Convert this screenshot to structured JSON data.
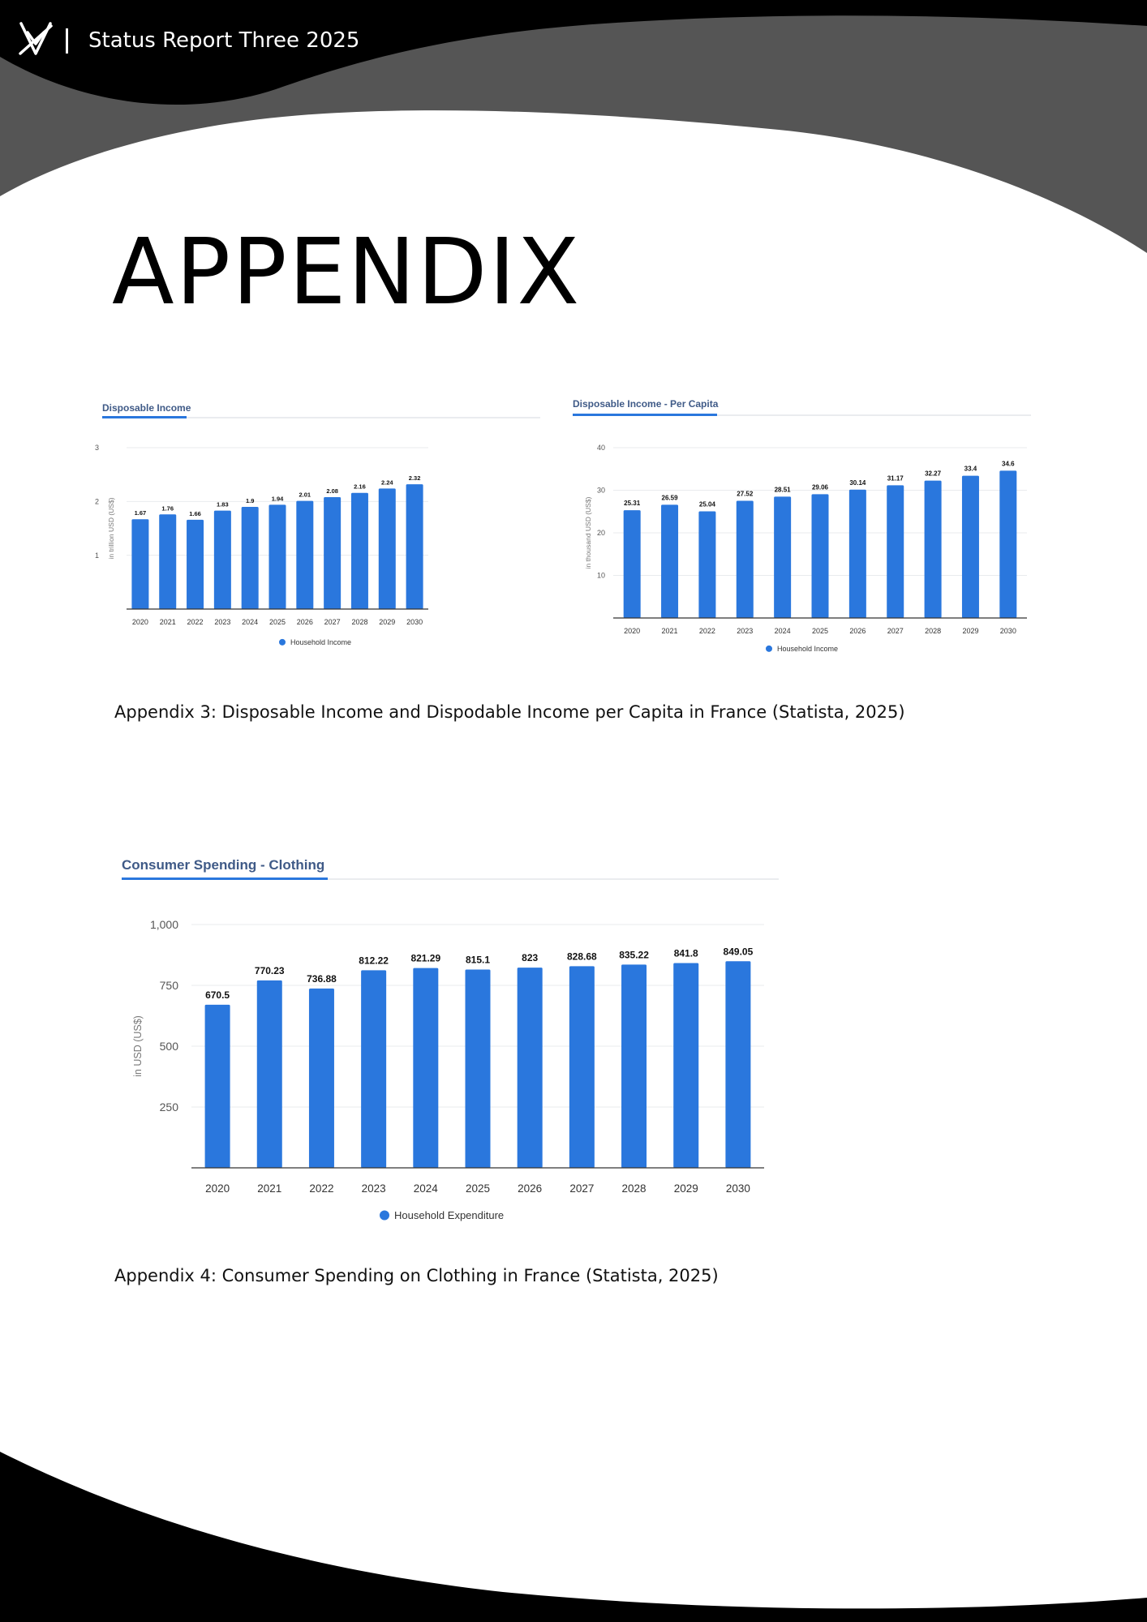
{
  "header": {
    "title": "Status Report Three 2025",
    "logo_icon": "antler-mark-icon"
  },
  "page": {
    "title": "APPENDIX"
  },
  "captions": {
    "appendix3": "Appendix 3: Disposable Income and Dispodable Income per Capita in France (Statista, 2025)",
    "appendix4": "Appendix 4: Consumer Spending on Clothing in France (Statista, 2025)"
  },
  "colors": {
    "bar": "#2a77dd",
    "tab_title": "#3f5a87",
    "tab_underline": "#2a77dd",
    "header_band": "#000000",
    "header_wave": "#555555"
  },
  "chart_data": [
    {
      "type": "bar",
      "title": "Disposable Income",
      "ylabel": "in trillion USD (US$)",
      "xlabel": "",
      "categories": [
        "2020",
        "2021",
        "2022",
        "2023",
        "2024",
        "2025",
        "2026",
        "2027",
        "2028",
        "2029",
        "2030"
      ],
      "series": [
        {
          "name": "Household Income",
          "values": [
            1.67,
            1.76,
            1.66,
            1.83,
            1.9,
            1.94,
            2.01,
            2.08,
            2.16,
            2.24,
            2.32
          ]
        }
      ],
      "value_labels": [
        "1.67",
        "1.76",
        "1.66",
        "1.83",
        "1.9",
        "1.94",
        "2.01",
        "2.08",
        "2.16",
        "2.24",
        "2.32"
      ],
      "ylim": [
        0,
        3
      ],
      "yticks": [
        1,
        2,
        3
      ],
      "ytick_labels": [
        "1",
        "2",
        "3"
      ],
      "grid": true,
      "legend": "bottom"
    },
    {
      "type": "bar",
      "title": "Disposable Income - Per Capita",
      "ylabel": "in thousand USD (US$)",
      "xlabel": "",
      "categories": [
        "2020",
        "2021",
        "2022",
        "2023",
        "2024",
        "2025",
        "2026",
        "2027",
        "2028",
        "2029",
        "2030"
      ],
      "series": [
        {
          "name": "Household Income",
          "values": [
            25.31,
            26.59,
            25.04,
            27.52,
            28.51,
            29.06,
            30.14,
            31.17,
            32.27,
            33.4,
            34.6
          ]
        }
      ],
      "value_labels": [
        "25.31",
        "26.59",
        "25.04",
        "27.52",
        "28.51",
        "29.06",
        "30.14",
        "31.17",
        "32.27",
        "33.4",
        "34.6"
      ],
      "ylim": [
        0,
        40
      ],
      "yticks": [
        10,
        20,
        30,
        40
      ],
      "ytick_labels": [
        "10",
        "20",
        "30",
        "40"
      ],
      "grid": true,
      "legend": "bottom"
    },
    {
      "type": "bar",
      "title": "Consumer Spending - Clothing",
      "ylabel": "in USD (US$)",
      "xlabel": "",
      "categories": [
        "2020",
        "2021",
        "2022",
        "2023",
        "2024",
        "2025",
        "2026",
        "2027",
        "2028",
        "2029",
        "2030"
      ],
      "series": [
        {
          "name": "Household Expenditure",
          "values": [
            670.5,
            770.23,
            736.88,
            812.22,
            821.29,
            815.1,
            823,
            828.68,
            835.22,
            841.8,
            849.05
          ]
        }
      ],
      "value_labels": [
        "670.5",
        "770.23",
        "736.88",
        "812.22",
        "821.29",
        "815.1",
        "823",
        "828.68",
        "835.22",
        "841.8",
        "849.05"
      ],
      "ylim": [
        0,
        1000
      ],
      "yticks": [
        250,
        500,
        750,
        1000
      ],
      "ytick_labels": [
        "250",
        "500",
        "750",
        "1,000"
      ],
      "grid": true,
      "legend": "bottom"
    }
  ]
}
